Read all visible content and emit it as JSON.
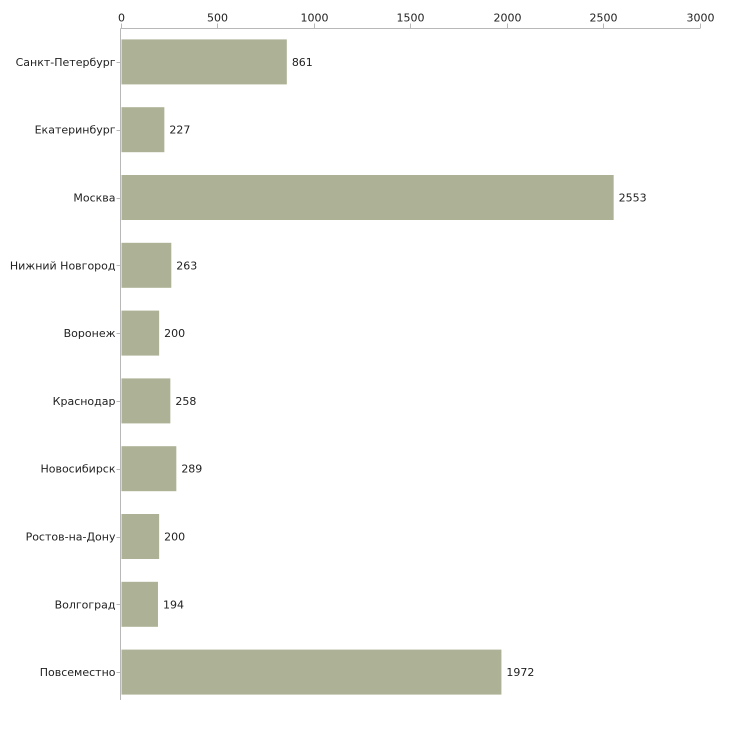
{
  "chart_data": {
    "type": "bar",
    "orientation": "horizontal",
    "title": "",
    "xlabel": "",
    "ylabel": "",
    "xlim": [
      0,
      3000
    ],
    "x_ticks": [
      0,
      500,
      1000,
      1500,
      2000,
      2500,
      3000
    ],
    "x_tick_labels": [
      "0",
      "500",
      "1000",
      "1500",
      "2000",
      "2500",
      "3000"
    ],
    "x_axis_position": "top",
    "grid": false,
    "legend": "none",
    "categories": [
      "Санкт-Петербург",
      "Екатеринбург",
      "Москва",
      "Нижний Новгород",
      "Воронеж",
      "Краснодар",
      "Новосибирск",
      "Ростов-на-Дону",
      "Волгоград",
      "Повсеместно"
    ],
    "values": [
      861,
      227,
      2553,
      263,
      200,
      258,
      289,
      200,
      194,
      1972
    ],
    "data_labels": [
      "861",
      "227",
      "2553",
      "263",
      "200",
      "258",
      "289",
      "200",
      "194",
      "1972"
    ],
    "bar_color": "#adb296",
    "axis_color": "#b8b8b8"
  }
}
